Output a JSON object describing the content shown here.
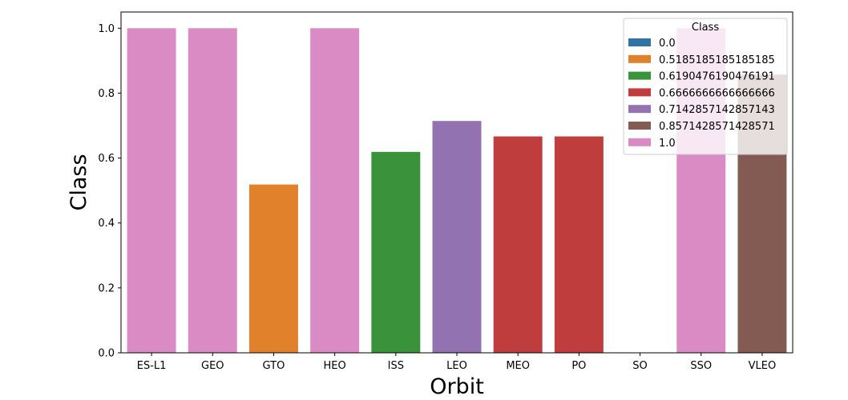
{
  "chart_data": {
    "type": "bar",
    "title": "",
    "xlabel": "Orbit",
    "ylabel": "Class",
    "ylim": [
      0,
      1.05
    ],
    "yticks": [
      "0.0",
      "0.2",
      "0.4",
      "0.6",
      "0.8",
      "1.0"
    ],
    "categories": [
      "ES-L1",
      "GEO",
      "GTO",
      "HEO",
      "ISS",
      "LEO",
      "MEO",
      "PO",
      "SO",
      "SSO",
      "VLEO"
    ],
    "values": [
      1.0,
      1.0,
      0.5185185185185185,
      1.0,
      0.6190476190476191,
      0.7142857142857143,
      0.6666666666666666,
      0.6666666666666666,
      0.0,
      1.0,
      0.8571428571428571
    ],
    "bar_colors": [
      "#da8bc3",
      "#da8bc3",
      "#e1812c",
      "#da8bc3",
      "#3a923a",
      "#9372b2",
      "#c03d3e",
      "#c03d3e",
      "#3274a1",
      "#da8bc3",
      "#845b53"
    ],
    "grid": false,
    "legend": {
      "title": "Class",
      "placement": "top-right",
      "entries": [
        {
          "label": "0.0",
          "color": "#3274a1"
        },
        {
          "label": "0.5185185185185185",
          "color": "#e1812c"
        },
        {
          "label": "0.6190476190476191",
          "color": "#3a923a"
        },
        {
          "label": "0.6666666666666666",
          "color": "#c03d3e"
        },
        {
          "label": "0.7142857142857143",
          "color": "#9372b2"
        },
        {
          "label": "0.8571428571428571",
          "color": "#845b53"
        },
        {
          "label": "1.0",
          "color": "#da8bc3"
        }
      ]
    }
  }
}
